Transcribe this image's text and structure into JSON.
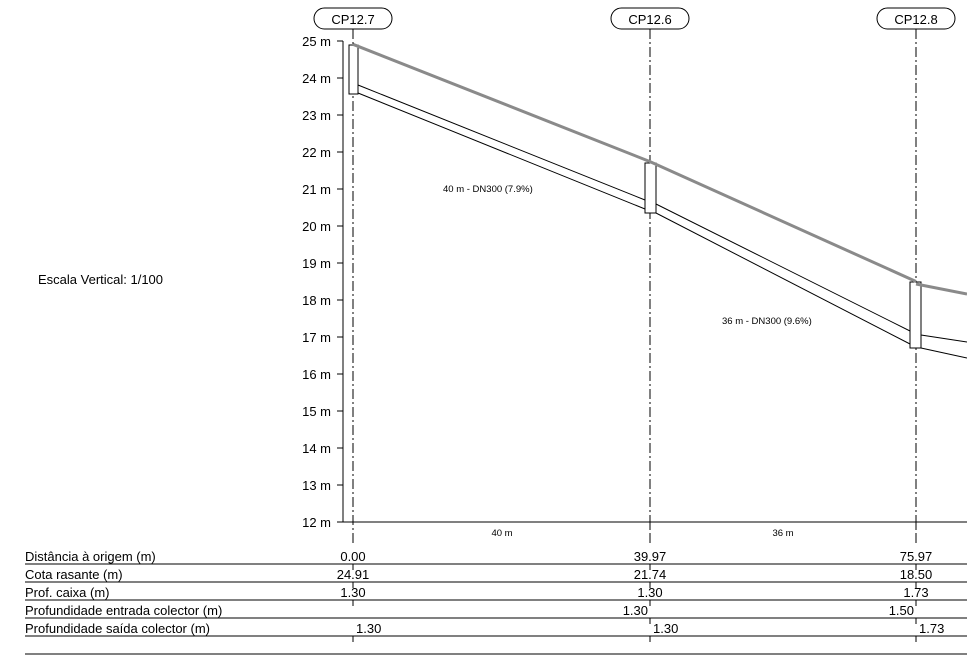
{
  "vertical_scale_label": "Escala Vertical: 1/100",
  "manholes": [
    "CP12.7",
    "CP12.6",
    "CP12.8"
  ],
  "y_axis": {
    "min": 12,
    "max": 25,
    "unit": "m",
    "ticks": [
      "25 m",
      "24 m",
      "23 m",
      "22 m",
      "21 m",
      "20 m",
      "19 m",
      "18 m",
      "17 m",
      "16 m",
      "15 m",
      "14 m",
      "13 m",
      "12 m"
    ]
  },
  "pipe_segments": [
    {
      "label": "40 m - DN300 (7.9%)",
      "length_label": "40 m"
    },
    {
      "label": "36 m - DN300 (9.6%)",
      "length_label": "36 m"
    }
  ],
  "table": {
    "rows": [
      {
        "label": "Distância à origem (m)",
        "values": [
          "0.00",
          "39.97",
          "75.97"
        ]
      },
      {
        "label": "Cota rasante (m)",
        "values": [
          "24.91",
          "21.74",
          "18.50"
        ]
      },
      {
        "label": "Prof. caixa (m)",
        "values": [
          "1.30",
          "1.30",
          "1.73"
        ]
      },
      {
        "label": "Profundidade entrada colector (m)",
        "values": [
          "",
          "1.30",
          "1.50"
        ]
      },
      {
        "label": "Profundidade saída colector (m)",
        "values": [
          "1.30",
          "1.30",
          "1.73"
        ]
      }
    ]
  },
  "chart_data": {
    "type": "line",
    "x": [
      0.0,
      39.97,
      75.97
    ],
    "ylim": [
      12,
      25
    ],
    "series": [
      {
        "values": [
          24.91,
          21.74,
          18.5
        ]
      }
    ]
  },
  "colors": {
    "ground_line": "#8a8a8a",
    "lines": "#000000"
  }
}
